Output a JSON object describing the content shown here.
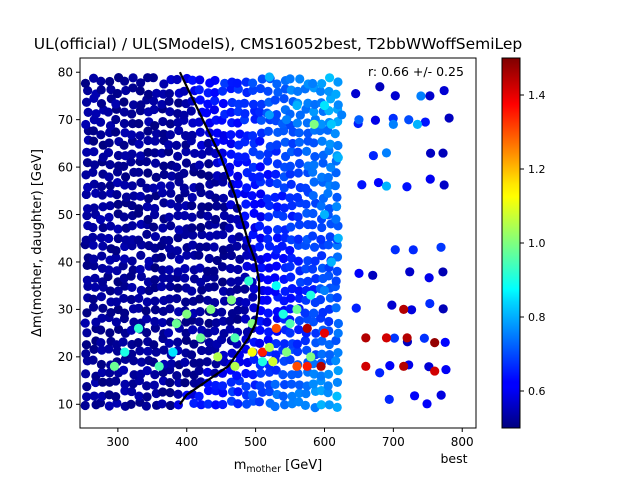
{
  "chart_data": {
    "type": "scatter",
    "title": "UL(official) / UL(SModelS), CMS16052best, T2bbWWoffSemiLep",
    "xlabel_main": "m",
    "xlabel_sub": "mother",
    "xlabel_unit": " [GeV]",
    "ylabel": "Δm(mother, daughter) [GeV]",
    "annotation": "r:  0.66 +/- 0.25",
    "corner_label": "best",
    "xlim": [
      245,
      820
    ],
    "ylim": [
      5,
      83
    ],
    "xticks": [
      300,
      400,
      500,
      600,
      700,
      800
    ],
    "yticks": [
      10,
      20,
      30,
      40,
      50,
      60,
      70,
      80
    ],
    "colorbar": {
      "min": 0.5,
      "max": 1.5,
      "ticks": [
        0.6,
        0.8,
        1.0,
        1.2,
        1.4
      ],
      "tick_labels": [
        "0.6",
        "0.8",
        "1.0",
        "1.2",
        "1.4"
      ]
    },
    "grid": false,
    "exclusion_line": [
      [
        390,
        80
      ],
      [
        400,
        77
      ],
      [
        410,
        74
      ],
      [
        420,
        71
      ],
      [
        430,
        68
      ],
      [
        440,
        65
      ],
      [
        450,
        62
      ],
      [
        460,
        58
      ],
      [
        470,
        54
      ],
      [
        480,
        49
      ],
      [
        490,
        44
      ],
      [
        500,
        40
      ],
      [
        505,
        36
      ],
      [
        505,
        32
      ],
      [
        500,
        27
      ],
      [
        490,
        24
      ],
      [
        475,
        21
      ],
      [
        460,
        18
      ],
      [
        440,
        16
      ],
      [
        420,
        14
      ],
      [
        400,
        12
      ],
      [
        390,
        10
      ]
    ],
    "high_points": [
      {
        "x": 510,
        "y": 21,
        "v": 1.35
      },
      {
        "x": 530,
        "y": 26,
        "v": 1.3
      },
      {
        "x": 575,
        "y": 26,
        "v": 1.45
      },
      {
        "x": 600,
        "y": 25,
        "v": 1.4
      },
      {
        "x": 575,
        "y": 18,
        "v": 1.35
      },
      {
        "x": 595,
        "y": 18,
        "v": 1.45
      },
      {
        "x": 560,
        "y": 18,
        "v": 1.3
      },
      {
        "x": 660,
        "y": 24,
        "v": 1.45
      },
      {
        "x": 690,
        "y": 24,
        "v": 1.42
      },
      {
        "x": 720,
        "y": 24,
        "v": 1.45
      },
      {
        "x": 660,
        "y": 18,
        "v": 1.42
      },
      {
        "x": 715,
        "y": 18,
        "v": 1.45
      },
      {
        "x": 760,
        "y": 17,
        "v": 1.42
      },
      {
        "x": 715,
        "y": 30,
        "v": 1.45
      },
      {
        "x": 760,
        "y": 23,
        "v": 1.48
      },
      {
        "x": 585,
        "y": 69,
        "v": 1.0
      },
      {
        "x": 550,
        "y": 27,
        "v": 0.95
      },
      {
        "x": 580,
        "y": 20,
        "v": 1.0
      },
      {
        "x": 420,
        "y": 24,
        "v": 0.98
      },
      {
        "x": 435,
        "y": 30,
        "v": 1.0
      },
      {
        "x": 445,
        "y": 20,
        "v": 1.05
      },
      {
        "x": 465,
        "y": 32,
        "v": 1.0
      },
      {
        "x": 470,
        "y": 24,
        "v": 0.95
      },
      {
        "x": 495,
        "y": 27,
        "v": 1.0
      },
      {
        "x": 520,
        "y": 22,
        "v": 1.05
      },
      {
        "x": 545,
        "y": 21,
        "v": 1.0
      },
      {
        "x": 560,
        "y": 30,
        "v": 0.98
      },
      {
        "x": 470,
        "y": 18,
        "v": 1.05
      },
      {
        "x": 495,
        "y": 21,
        "v": 1.12
      },
      {
        "x": 525,
        "y": 19,
        "v": 1.08
      },
      {
        "x": 385,
        "y": 27,
        "v": 0.98
      },
      {
        "x": 360,
        "y": 18,
        "v": 0.95
      },
      {
        "x": 295,
        "y": 18,
        "v": 0.98
      },
      {
        "x": 310,
        "y": 21,
        "v": 0.9
      },
      {
        "x": 330,
        "y": 26,
        "v": 0.92
      },
      {
        "x": 490,
        "y": 36,
        "v": 0.92
      },
      {
        "x": 510,
        "y": 19,
        "v": 0.9
      },
      {
        "x": 540,
        "y": 29,
        "v": 0.9
      },
      {
        "x": 580,
        "y": 33,
        "v": 0.9
      },
      {
        "x": 400,
        "y": 29,
        "v": 1.0
      },
      {
        "x": 380,
        "y": 21,
        "v": 0.85
      },
      {
        "x": 530,
        "y": 35,
        "v": 0.88
      },
      {
        "x": 600,
        "y": 73,
        "v": 0.85
      },
      {
        "x": 610,
        "y": 69,
        "v": 0.82
      },
      {
        "x": 620,
        "y": 62,
        "v": 0.8
      },
      {
        "x": 560,
        "y": 73,
        "v": 0.8
      },
      {
        "x": 520,
        "y": 79,
        "v": 0.8
      },
      {
        "x": 600,
        "y": 50,
        "v": 0.8
      },
      {
        "x": 610,
        "y": 40,
        "v": 0.8
      },
      {
        "x": 620,
        "y": 45,
        "v": 0.8
      },
      {
        "x": 600,
        "y": 34,
        "v": 0.75
      },
      {
        "x": 625,
        "y": 71,
        "v": 0.75
      },
      {
        "x": 545,
        "y": 70,
        "v": 0.75
      },
      {
        "x": 735,
        "y": 69,
        "v": 0.8
      },
      {
        "x": 740,
        "y": 75,
        "v": 0.75
      },
      {
        "x": 690,
        "y": 56,
        "v": 0.8
      },
      {
        "x": 700,
        "y": 69,
        "v": 0.75
      },
      {
        "x": 690,
        "y": 63,
        "v": 0.75
      },
      {
        "x": 650,
        "y": 70,
        "v": 0.72
      },
      {
        "x": 520,
        "y": 71,
        "v": 0.78
      }
    ]
  }
}
